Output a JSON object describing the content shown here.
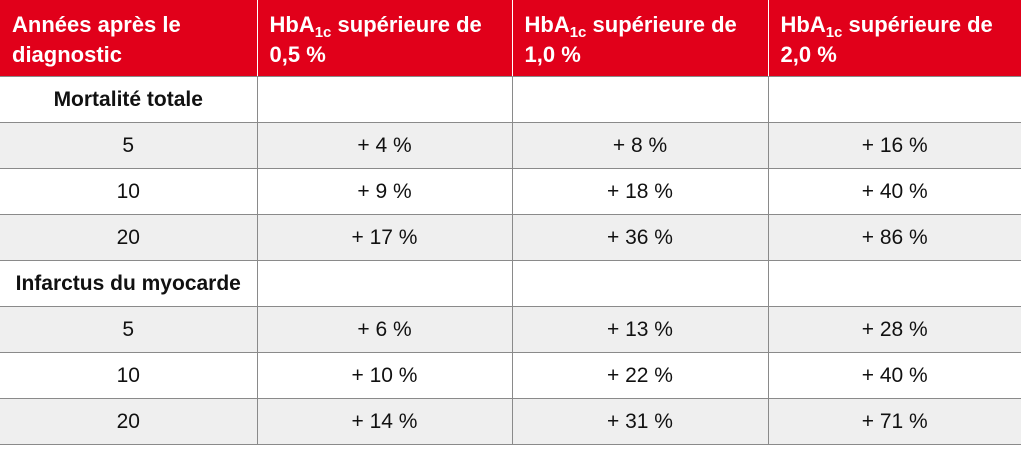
{
  "headers": {
    "col1": "Années après le diagnostic",
    "col2": {
      "prefix": "HbA",
      "sub": "1c",
      "suffix": " supérieure de 0,5 %"
    },
    "col3": {
      "prefix": "HbA",
      "sub": "1c",
      "suffix": " supérieure de 1,0 %"
    },
    "col4": {
      "prefix": "HbA",
      "sub": "1c",
      "suffix": " supérieure de 2,0 %"
    }
  },
  "sections": [
    {
      "title": "Mortalité totale",
      "rows": [
        {
          "years": "5",
          "v1": "+ 4 %",
          "v2": "+ 8 %",
          "v3": "+ 16 %"
        },
        {
          "years": "10",
          "v1": "+ 9 %",
          "v2": "+ 18 %",
          "v3": "+ 40 %"
        },
        {
          "years": "20",
          "v1": "+ 17 %",
          "v2": "+ 36 %",
          "v3": "+ 86 %"
        }
      ]
    },
    {
      "title": "Infarctus du myocarde",
      "rows": [
        {
          "years": "5",
          "v1": "+ 6 %",
          "v2": "+ 13 %",
          "v3": "+ 28 %"
        },
        {
          "years": "10",
          "v1": "+ 10 %",
          "v2": "+ 22 %",
          "v3": "+ 40 %"
        },
        {
          "years": "20",
          "v1": "+ 14 %",
          "v2": "+ 31 %",
          "v3": "+ 71 %"
        }
      ]
    }
  ],
  "colors": {
    "header_bg": "#e1001a",
    "shade": "#efefef"
  }
}
